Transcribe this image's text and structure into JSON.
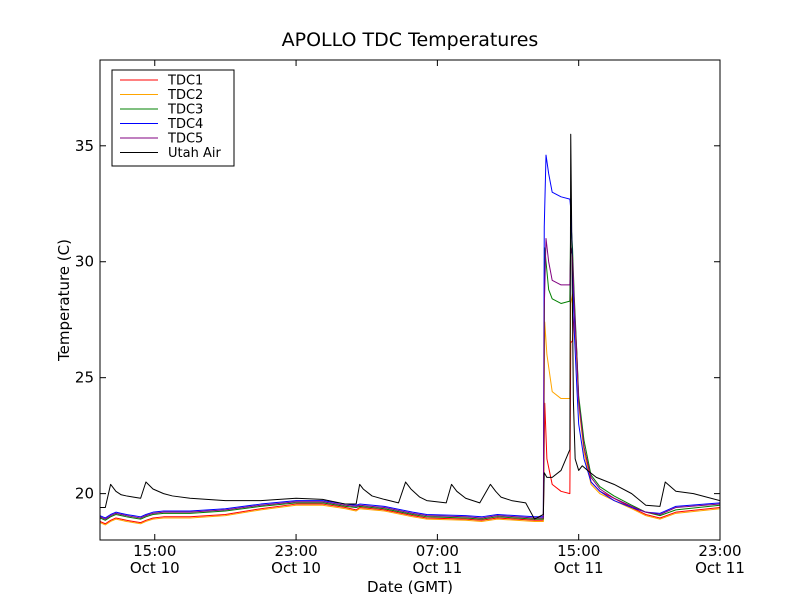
{
  "chart_data": {
    "type": "line",
    "title": "APOLLO TDC Temperatures",
    "xlabel": "Date (GMT)",
    "ylabel": "Temperature (C)",
    "xlim": [
      10.9,
      46.0
    ],
    "ylim": [
      18.0,
      38.7
    ],
    "grid": false,
    "legend_position": "top-left",
    "x_ticks": [
      {
        "value": 14.0,
        "line1": "15:00",
        "line2": "Oct 10"
      },
      {
        "value": 22.0,
        "line1": "23:00",
        "line2": "Oct 10"
      },
      {
        "value": 30.0,
        "line1": "07:00",
        "line2": "Oct 11"
      },
      {
        "value": 38.0,
        "line1": "15:00",
        "line2": "Oct 11"
      },
      {
        "value": 46.0,
        "line1": "23:00",
        "line2": "Oct 11"
      }
    ],
    "y_ticks": [
      {
        "value": 20,
        "label": "20"
      },
      {
        "value": 25,
        "label": "25"
      },
      {
        "value": 30,
        "label": "30"
      },
      {
        "value": 35,
        "label": "35"
      }
    ],
    "series": [
      {
        "name": "TDC1",
        "color": "#ff0000",
        "x": [
          10.9,
          11.2,
          11.5,
          11.8,
          12.1,
          12.4,
          12.8,
          13.2,
          13.5,
          13.9,
          14.5,
          16,
          18,
          20,
          22,
          23.5,
          24.8,
          25.4,
          25.6,
          27,
          28.6,
          29.4,
          31.6,
          32.5,
          33.4,
          35.5,
          36.0,
          36.08,
          36.2,
          36.5,
          37,
          37.5,
          37.55,
          37.65,
          37.75,
          37.9,
          38,
          38.3,
          38.7,
          39.2,
          40,
          41,
          41.8,
          42.6,
          43.5,
          46
        ],
        "values": [
          18.8,
          18.7,
          18.85,
          18.95,
          18.9,
          18.85,
          18.8,
          18.75,
          18.85,
          18.95,
          19.0,
          19.0,
          19.1,
          19.35,
          19.55,
          19.55,
          19.4,
          19.3,
          19.4,
          19.3,
          19.05,
          18.95,
          18.9,
          18.85,
          18.95,
          18.85,
          18.85,
          23.9,
          21.5,
          20.4,
          20.1,
          20.0,
          26.5,
          26.6,
          28.0,
          26.0,
          24.0,
          22.0,
          20.5,
          20.1,
          19.8,
          19.4,
          19.1,
          18.95,
          19.2,
          19.4
        ]
      },
      {
        "name": "TDC2",
        "color": "#ffa500",
        "x": [
          10.9,
          11.2,
          11.5,
          11.8,
          12.1,
          12.4,
          12.8,
          13.2,
          13.5,
          13.9,
          14.5,
          16,
          18,
          20,
          22,
          23.5,
          24.8,
          25.4,
          25.6,
          27,
          28.6,
          29.4,
          31.6,
          32.5,
          33.4,
          35.5,
          36.0,
          36.08,
          36.2,
          36.5,
          37,
          37.5,
          37.55,
          37.65,
          37.75,
          37.9,
          38,
          38.3,
          38.7,
          39.2,
          40,
          41,
          41.8,
          42.6,
          43.5,
          46
        ],
        "values": [
          18.75,
          18.65,
          18.8,
          18.9,
          18.85,
          18.8,
          18.75,
          18.7,
          18.8,
          18.9,
          18.95,
          18.95,
          19.05,
          19.3,
          19.5,
          19.5,
          19.35,
          19.25,
          19.35,
          19.25,
          19.0,
          18.9,
          18.85,
          18.8,
          18.9,
          18.8,
          18.8,
          27.4,
          26.0,
          24.4,
          24.1,
          24.1,
          28.2,
          28.6,
          27.5,
          25.5,
          23.8,
          21.8,
          20.4,
          20.0,
          19.7,
          19.35,
          19.05,
          18.9,
          19.15,
          19.35
        ]
      },
      {
        "name": "TDC3",
        "color": "#008000",
        "x": [
          10.9,
          11.2,
          11.5,
          11.8,
          12.1,
          12.4,
          12.8,
          13.2,
          13.5,
          13.9,
          14.5,
          16,
          18,
          20,
          22,
          23.5,
          24.8,
          25.4,
          25.6,
          27,
          28.6,
          29.4,
          31.6,
          32.5,
          33.4,
          35.5,
          36.0,
          36.08,
          36.15,
          36.3,
          36.5,
          37,
          37.5,
          37.55,
          37.65,
          37.75,
          37.9,
          38,
          38.3,
          38.7,
          39.2,
          40,
          41,
          41.8,
          42.6,
          43.5,
          46
        ],
        "values": [
          18.95,
          18.85,
          19.0,
          19.1,
          19.05,
          19.0,
          18.95,
          18.9,
          19.0,
          19.1,
          19.15,
          19.15,
          19.25,
          19.45,
          19.6,
          19.6,
          19.45,
          19.4,
          19.45,
          19.35,
          19.1,
          19.0,
          18.95,
          18.9,
          19.0,
          18.9,
          18.9,
          30.6,
          30.0,
          28.8,
          28.4,
          28.2,
          28.3,
          31.8,
          30.6,
          28.5,
          26.0,
          24.2,
          22.3,
          20.8,
          20.3,
          19.9,
          19.5,
          19.2,
          19.05,
          19.3,
          19.5
        ]
      },
      {
        "name": "TDC4",
        "color": "#0000ff",
        "x": [
          10.9,
          11.2,
          11.5,
          11.8,
          12.1,
          12.4,
          12.8,
          13.2,
          13.5,
          13.9,
          14.5,
          16,
          18,
          20,
          22,
          23.5,
          24.8,
          25.4,
          25.6,
          27,
          28.6,
          29.4,
          31.6,
          32.5,
          33.4,
          35.5,
          36.0,
          36.05,
          36.15,
          36.3,
          36.5,
          37,
          37.5,
          37.55,
          37.65,
          37.75,
          37.9,
          38,
          38.3,
          38.7,
          39.2,
          40,
          41,
          41.8,
          42.6,
          43.5,
          46
        ],
        "values": [
          19.05,
          18.95,
          19.1,
          19.2,
          19.15,
          19.1,
          19.05,
          19.0,
          19.1,
          19.2,
          19.25,
          19.25,
          19.35,
          19.55,
          19.7,
          19.7,
          19.55,
          19.5,
          19.55,
          19.45,
          19.2,
          19.1,
          19.05,
          19.0,
          19.1,
          19.0,
          19.0,
          31.5,
          34.6,
          33.8,
          33.0,
          32.8,
          32.7,
          32.3,
          30.0,
          27.0,
          24.5,
          23.0,
          21.5,
          20.5,
          20.1,
          19.7,
          19.4,
          19.2,
          19.15,
          19.45,
          19.6
        ]
      },
      {
        "name": "TDC5",
        "color": "#800080",
        "x": [
          10.9,
          11.2,
          11.5,
          11.8,
          12.1,
          12.4,
          12.8,
          13.2,
          13.5,
          13.9,
          14.5,
          16,
          18,
          20,
          22,
          23.5,
          24.8,
          25.4,
          25.6,
          27,
          28.6,
          29.4,
          31.6,
          32.5,
          33.4,
          35.5,
          36.0,
          36.05,
          36.15,
          36.3,
          36.5,
          37,
          37.5,
          37.55,
          37.65,
          37.75,
          37.9,
          38,
          38.3,
          38.7,
          39.2,
          40,
          41,
          41.8,
          42.6,
          43.5,
          46
        ],
        "values": [
          19.0,
          18.9,
          19.05,
          19.15,
          19.1,
          19.05,
          19.0,
          18.95,
          19.05,
          19.15,
          19.2,
          19.2,
          19.3,
          19.5,
          19.65,
          19.65,
          19.5,
          19.45,
          19.5,
          19.4,
          19.15,
          19.05,
          19.0,
          18.95,
          19.05,
          18.95,
          18.95,
          28.0,
          31.0,
          30.0,
          29.2,
          29.0,
          29.0,
          30.6,
          30.2,
          28.2,
          25.8,
          24.0,
          22.0,
          20.7,
          20.2,
          19.8,
          19.45,
          19.2,
          19.1,
          19.4,
          19.55
        ]
      },
      {
        "name": "Utah Air",
        "color": "#000000",
        "x": [
          10.9,
          11.2,
          11.5,
          11.8,
          12.1,
          12.4,
          12.8,
          13.2,
          13.5,
          13.9,
          14.5,
          15,
          16,
          18,
          20,
          22,
          23.5,
          24.8,
          25.4,
          25.6,
          25.8,
          26.3,
          27,
          27.8,
          28.2,
          28.5,
          29.0,
          29.4,
          30.5,
          30.8,
          31.1,
          31.6,
          32.4,
          33.0,
          33.3,
          33.6,
          34.2,
          35.0,
          35.5,
          36.0,
          36.05,
          36.2,
          36.5,
          37,
          37.5,
          37.55,
          37.7,
          37.8,
          38.0,
          38.2,
          38.5,
          39,
          40,
          41,
          41.8,
          42.6,
          42.9,
          43.5,
          44.5,
          46
        ],
        "values": [
          19.4,
          19.4,
          20.4,
          20.1,
          19.95,
          19.9,
          19.85,
          19.8,
          20.5,
          20.2,
          20.0,
          19.9,
          19.8,
          19.7,
          19.7,
          19.8,
          19.75,
          19.55,
          19.55,
          20.4,
          20.2,
          19.9,
          19.75,
          19.6,
          20.5,
          20.2,
          19.85,
          19.7,
          19.6,
          20.4,
          20.1,
          19.8,
          19.6,
          20.4,
          20.1,
          19.85,
          19.7,
          19.6,
          18.9,
          19.1,
          20.9,
          20.7,
          20.7,
          21.0,
          21.9,
          35.5,
          24.0,
          21.5,
          21.0,
          21.2,
          21.0,
          20.7,
          20.4,
          20.0,
          19.5,
          19.45,
          20.5,
          20.1,
          20.0,
          19.7
        ]
      }
    ]
  }
}
